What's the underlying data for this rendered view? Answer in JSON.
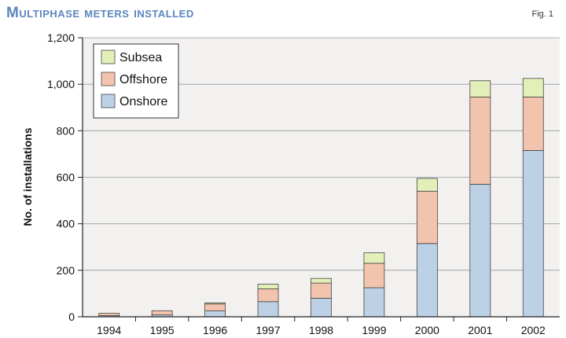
{
  "header": {
    "title": "Multiphase meters installed",
    "fig_label": "Fig. 1"
  },
  "chart_data": {
    "type": "bar",
    "stacked": true,
    "title": "Multiphase meters installed",
    "xlabel": "",
    "ylabel": "No. of installations",
    "ylim": [
      0,
      1200
    ],
    "yticks": [
      0,
      200,
      400,
      600,
      800,
      1000,
      1200
    ],
    "ytick_labels": [
      "0",
      "200",
      "400",
      "600",
      "800",
      "1,000",
      "1,200"
    ],
    "grid": true,
    "legend": "top-left",
    "categories": [
      "1994",
      "1995",
      "1996",
      "1997",
      "1998",
      "1999",
      "2000",
      "2001",
      "2002"
    ],
    "series": [
      {
        "name": "Onshore",
        "color": "#bcd0e6",
        "values": [
          5,
          8,
          25,
          65,
          80,
          125,
          315,
          570,
          715
        ]
      },
      {
        "name": "Offshore",
        "color": "#f3c4ad",
        "values": [
          10,
          18,
          30,
          55,
          65,
          105,
          225,
          375,
          230
        ]
      },
      {
        "name": "Subsea",
        "color": "#e2efb8",
        "values": [
          0,
          0,
          5,
          20,
          20,
          45,
          55,
          70,
          80
        ]
      }
    ]
  }
}
